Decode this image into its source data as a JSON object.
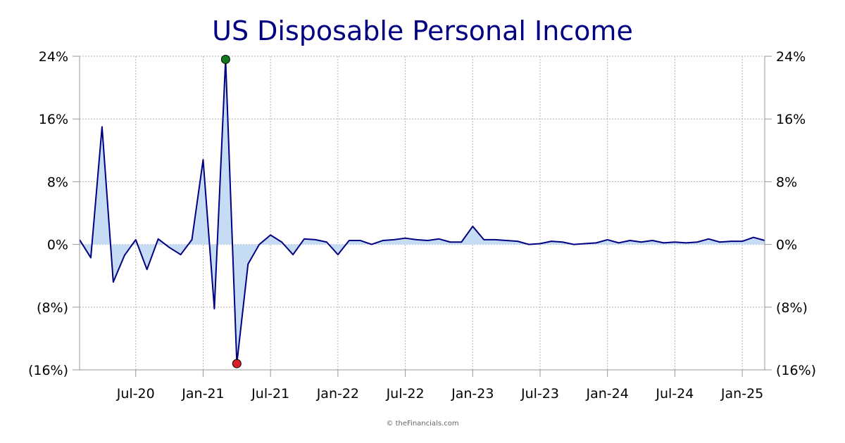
{
  "chart_data": {
    "type": "area",
    "title": "US Disposable Personal Income",
    "y_ticks": [
      "24%",
      "16%",
      "8%",
      "0%",
      "(8%)",
      "(16%)"
    ],
    "y_tick_values": [
      24,
      16,
      8,
      0,
      -8,
      -16
    ],
    "ylim": [
      -16,
      24
    ],
    "x_ticks": [
      "Jul-20",
      "Jan-21",
      "Jul-21",
      "Jan-22",
      "Jul-22",
      "Jan-23",
      "Jul-23",
      "Jan-24",
      "Jul-24",
      "Jan-25"
    ],
    "x_tick_dates": [
      "2020-07",
      "2021-01",
      "2021-07",
      "2022-01",
      "2022-07",
      "2023-01",
      "2023-07",
      "2024-01",
      "2024-07",
      "2025-01"
    ],
    "x_range": [
      "2020-02",
      "2025-03"
    ],
    "grid": true,
    "series": [
      {
        "x": [
          "2020-02",
          "2020-03",
          "2020-04",
          "2020-05",
          "2020-06",
          "2020-07",
          "2020-08",
          "2020-09",
          "2020-10",
          "2020-11",
          "2020-12",
          "2021-01",
          "2021-02",
          "2021-03",
          "2021-04",
          "2021-05",
          "2021-06",
          "2021-07",
          "2021-08",
          "2021-09",
          "2021-10",
          "2021-11",
          "2021-12",
          "2022-01",
          "2022-02",
          "2022-03",
          "2022-04",
          "2022-05",
          "2022-06",
          "2022-07",
          "2022-08",
          "2022-09",
          "2022-10",
          "2022-11",
          "2022-12",
          "2023-01",
          "2023-02",
          "2023-03",
          "2023-04",
          "2023-05",
          "2023-06",
          "2023-07",
          "2023-08",
          "2023-09",
          "2023-10",
          "2023-11",
          "2023-12",
          "2024-01",
          "2024-02",
          "2024-03",
          "2024-04",
          "2024-05",
          "2024-06",
          "2024-07",
          "2024-08",
          "2024-09",
          "2024-10",
          "2024-11",
          "2024-12",
          "2025-01",
          "2025-02",
          "2025-03"
        ],
        "values": [
          0.6,
          -1.7,
          15.0,
          -4.8,
          -1.4,
          0.6,
          -3.2,
          0.7,
          -0.4,
          -1.3,
          0.6,
          10.8,
          -8.2,
          23.6,
          -15.2,
          -2.5,
          0.0,
          1.2,
          0.3,
          -1.3,
          0.7,
          0.6,
          0.3,
          -1.3,
          0.5,
          0.5,
          0.0,
          0.5,
          0.6,
          0.8,
          0.6,
          0.5,
          0.7,
          0.3,
          0.3,
          2.3,
          0.6,
          0.6,
          0.5,
          0.4,
          0.0,
          0.1,
          0.4,
          0.3,
          0.0,
          0.1,
          0.2,
          0.6,
          0.2,
          0.5,
          0.3,
          0.5,
          0.2,
          0.3,
          0.2,
          0.3,
          0.7,
          0.3,
          0.4,
          0.4,
          0.9,
          0.5
        ],
        "max_marker": {
          "x": "2021-03",
          "value": 23.6
        },
        "min_marker": {
          "x": "2021-04",
          "value": -15.2
        }
      }
    ]
  },
  "colors": {
    "title": "#000080",
    "line": "#000080",
    "fill": "#c6dcf4",
    "grid": "#b5b5b5",
    "axis": "#999999",
    "max_marker": "#0e7a1c",
    "min_marker": "#d81f26",
    "credit": "#666666"
  },
  "credit": "© theFinancials.com"
}
